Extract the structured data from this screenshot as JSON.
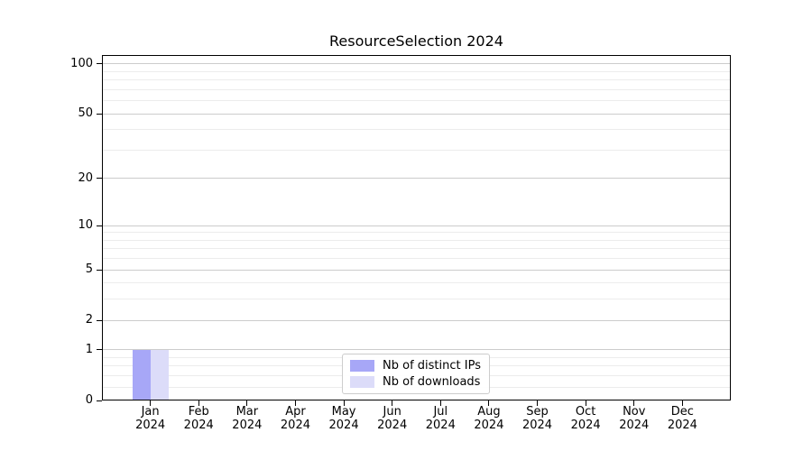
{
  "chart_data": {
    "type": "bar",
    "title": "ResourceSelection 2024",
    "year": "2024",
    "categories": [
      "Jan",
      "Feb",
      "Mar",
      "Apr",
      "May",
      "Jun",
      "Jul",
      "Aug",
      "Sep",
      "Oct",
      "Nov",
      "Dec"
    ],
    "series": [
      {
        "name": "Nb of distinct IPs",
        "color": "#a7a7f7",
        "values": [
          1,
          0,
          0,
          0,
          0,
          0,
          0,
          0,
          0,
          0,
          0,
          0
        ]
      },
      {
        "name": "Nb of downloads",
        "color": "#dcdcf9",
        "values": [
          1,
          0,
          0,
          0,
          0,
          0,
          0,
          0,
          0,
          0,
          0,
          0
        ]
      }
    ],
    "yscale": "log1p",
    "yticks": [
      0,
      1,
      2,
      5,
      10,
      20,
      50,
      100
    ],
    "minor_yticks": [
      0.2,
      0.4,
      0.6,
      0.8,
      3,
      4,
      6,
      7,
      8,
      9,
      30,
      40,
      60,
      70,
      80,
      90
    ],
    "ylim": [
      0,
      113
    ],
    "xlabel": "",
    "ylabel": "",
    "grid": true,
    "legend_position": "lower center",
    "colors": {
      "major_grid": "#cccccc",
      "minor_grid": "#ececec",
      "axis": "#000000",
      "text": "#000000",
      "background": "#ffffff"
    }
  }
}
